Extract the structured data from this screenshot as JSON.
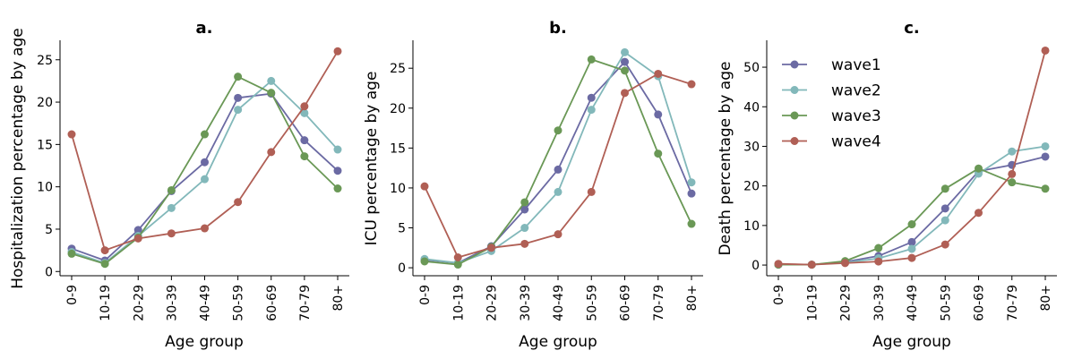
{
  "chart_data": [
    {
      "type": "line",
      "title": "a.",
      "xlabel": "Age group",
      "ylabel": "Hospitalization percentage by age",
      "categories": [
        "0-9",
        "10-19",
        "20-29",
        "30-39",
        "40-49",
        "50-59",
        "60-69",
        "70-79",
        "80+"
      ],
      "ylim": [
        -0.5,
        27.3
      ],
      "yticks": [
        0,
        5,
        10,
        15,
        20,
        25
      ],
      "series": [
        {
          "name": "wave1",
          "color": "#6b6aa3",
          "values": [
            2.7,
            1.3,
            4.9,
            9.5,
            12.9,
            20.5,
            21.0,
            15.5,
            11.9
          ]
        },
        {
          "name": "wave2",
          "color": "#82b8ba",
          "values": [
            2.3,
            1.0,
            4.2,
            7.5,
            10.9,
            19.1,
            22.5,
            18.7,
            14.4
          ]
        },
        {
          "name": "wave3",
          "color": "#6a9856",
          "values": [
            2.1,
            0.9,
            4.0,
            9.6,
            16.2,
            23.0,
            21.1,
            13.6,
            9.8
          ]
        },
        {
          "name": "wave4",
          "color": "#b05f55",
          "values": [
            16.2,
            2.5,
            3.9,
            4.5,
            5.1,
            8.2,
            14.1,
            19.5,
            26.0
          ]
        }
      ]
    },
    {
      "type": "line",
      "title": "b.",
      "xlabel": "Age group",
      "ylabel": "ICU percentage by age",
      "categories": [
        "0-9",
        "10-19",
        "20-29",
        "30-39",
        "40-49",
        "50-59",
        "60-69",
        "70-79",
        "80+"
      ],
      "ylim": [
        -1.0,
        28.5
      ],
      "yticks": [
        0,
        5,
        10,
        15,
        20,
        25
      ],
      "series": [
        {
          "name": "wave1",
          "color": "#6b6aa3",
          "values": [
            1.0,
            0.6,
            2.7,
            7.3,
            12.3,
            21.3,
            25.8,
            19.2,
            9.3
          ]
        },
        {
          "name": "wave2",
          "color": "#82b8ba",
          "values": [
            1.1,
            0.6,
            2.1,
            5.0,
            9.5,
            19.8,
            27.0,
            24.0,
            10.7
          ]
        },
        {
          "name": "wave3",
          "color": "#6a9856",
          "values": [
            0.8,
            0.4,
            2.6,
            8.2,
            17.2,
            26.1,
            24.7,
            14.3,
            5.5
          ]
        },
        {
          "name": "wave4",
          "color": "#b05f55",
          "values": [
            10.2,
            1.3,
            2.5,
            3.0,
            4.2,
            9.5,
            21.9,
            24.3,
            23.0
          ]
        }
      ]
    },
    {
      "type": "line",
      "title": "c.",
      "xlabel": "Age group",
      "ylabel": "Death percentage by age",
      "categories": [
        "0-9",
        "10-19",
        "20-29",
        "30-39",
        "40-49",
        "50-59",
        "60-69",
        "70-79",
        "80+"
      ],
      "ylim": [
        -2.7,
        56.8
      ],
      "yticks": [
        0,
        10,
        20,
        30,
        40,
        50
      ],
      "legend": {
        "position": "upper-left",
        "entries": [
          "wave1",
          "wave2",
          "wave3",
          "wave4"
        ]
      },
      "series": [
        {
          "name": "wave1",
          "color": "#6b6aa3",
          "values": [
            0.1,
            0.1,
            0.8,
            2.3,
            5.8,
            14.3,
            23.7,
            25.3,
            27.4
          ]
        },
        {
          "name": "wave2",
          "color": "#82b8ba",
          "values": [
            0.1,
            0.1,
            0.6,
            1.7,
            4.1,
            11.3,
            23.1,
            28.7,
            30.0
          ]
        },
        {
          "name": "wave3",
          "color": "#6a9856",
          "values": [
            0.1,
            0.1,
            1.0,
            4.3,
            10.3,
            19.3,
            24.4,
            20.9,
            19.3
          ]
        },
        {
          "name": "wave4",
          "color": "#b05f55",
          "values": [
            0.3,
            0.1,
            0.5,
            0.9,
            1.8,
            5.2,
            13.2,
            23.0,
            54.2
          ]
        }
      ]
    }
  ]
}
